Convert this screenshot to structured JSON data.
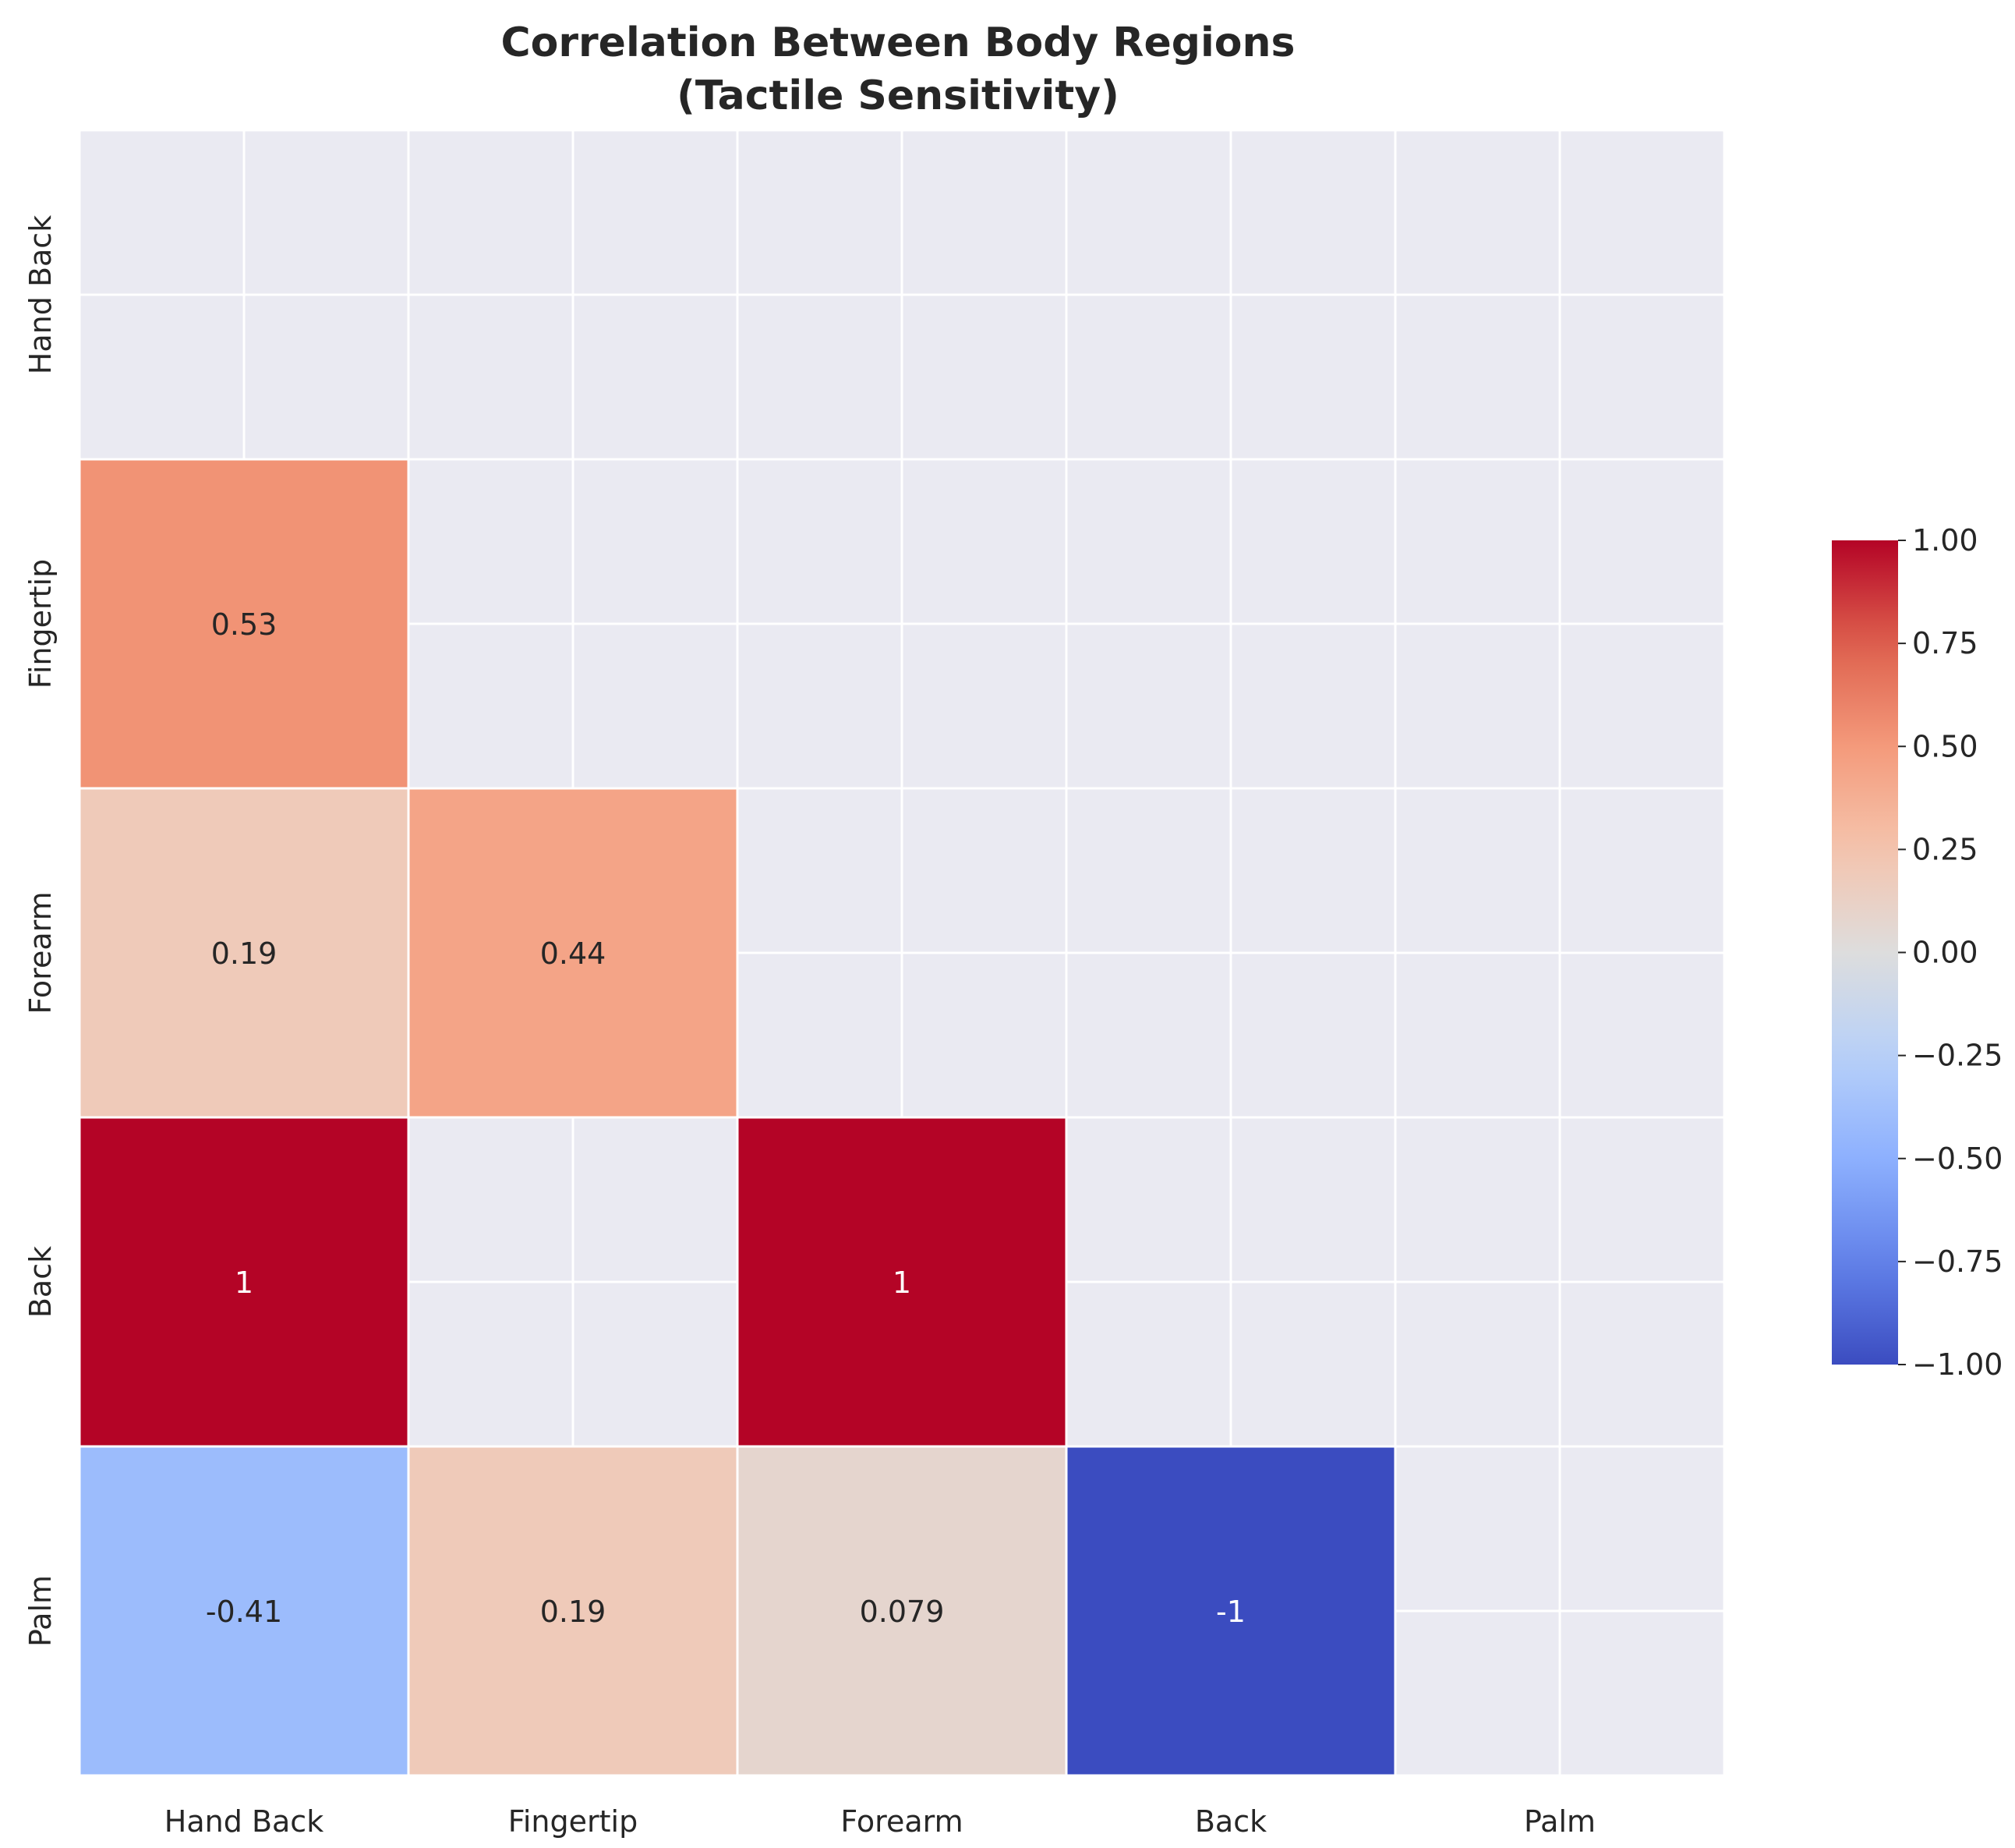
{
  "chart_data": {
    "type": "heatmap",
    "title": "Correlation Between Body Regions",
    "subtitle": "(Tactile Sensitivity)",
    "row_labels": [
      "Hand Back",
      "Fingertip",
      "Forearm",
      "Back",
      "Palm"
    ],
    "col_labels": [
      "Hand Back",
      "Fingertip",
      "Forearm",
      "Back",
      "Palm"
    ],
    "cells": [
      {
        "row": 1,
        "col": 0,
        "value": 0.53,
        "label": "0.53"
      },
      {
        "row": 2,
        "col": 0,
        "value": 0.19,
        "label": "0.19"
      },
      {
        "row": 2,
        "col": 1,
        "value": 0.44,
        "label": "0.44"
      },
      {
        "row": 3,
        "col": 0,
        "value": 1.0,
        "label": "1"
      },
      {
        "row": 3,
        "col": 2,
        "value": 1.0,
        "label": "1"
      },
      {
        "row": 4,
        "col": 0,
        "value": -0.41,
        "label": "-0.41"
      },
      {
        "row": 4,
        "col": 1,
        "value": 0.19,
        "label": "0.19"
      },
      {
        "row": 4,
        "col": 2,
        "value": 0.079,
        "label": "0.079"
      },
      {
        "row": 4,
        "col": 3,
        "value": -1.0,
        "label": "-1"
      }
    ],
    "colormap": "coolwarm",
    "vmin": -1,
    "vmax": 1,
    "colorbar_ticks": [
      {
        "value": 1.0,
        "label": "1.00"
      },
      {
        "value": 0.75,
        "label": "0.75"
      },
      {
        "value": 0.5,
        "label": "0.50"
      },
      {
        "value": 0.25,
        "label": "0.25"
      },
      {
        "value": 0.0,
        "label": "0.00"
      },
      {
        "value": -0.25,
        "label": "−0.25"
      },
      {
        "value": -0.5,
        "label": "−0.50"
      },
      {
        "value": -0.75,
        "label": "−0.75"
      },
      {
        "value": -1.0,
        "label": "−1.00"
      }
    ],
    "grid": true,
    "masked_cell_color": "#eaeaf2",
    "grid_color": "#ffffff"
  }
}
